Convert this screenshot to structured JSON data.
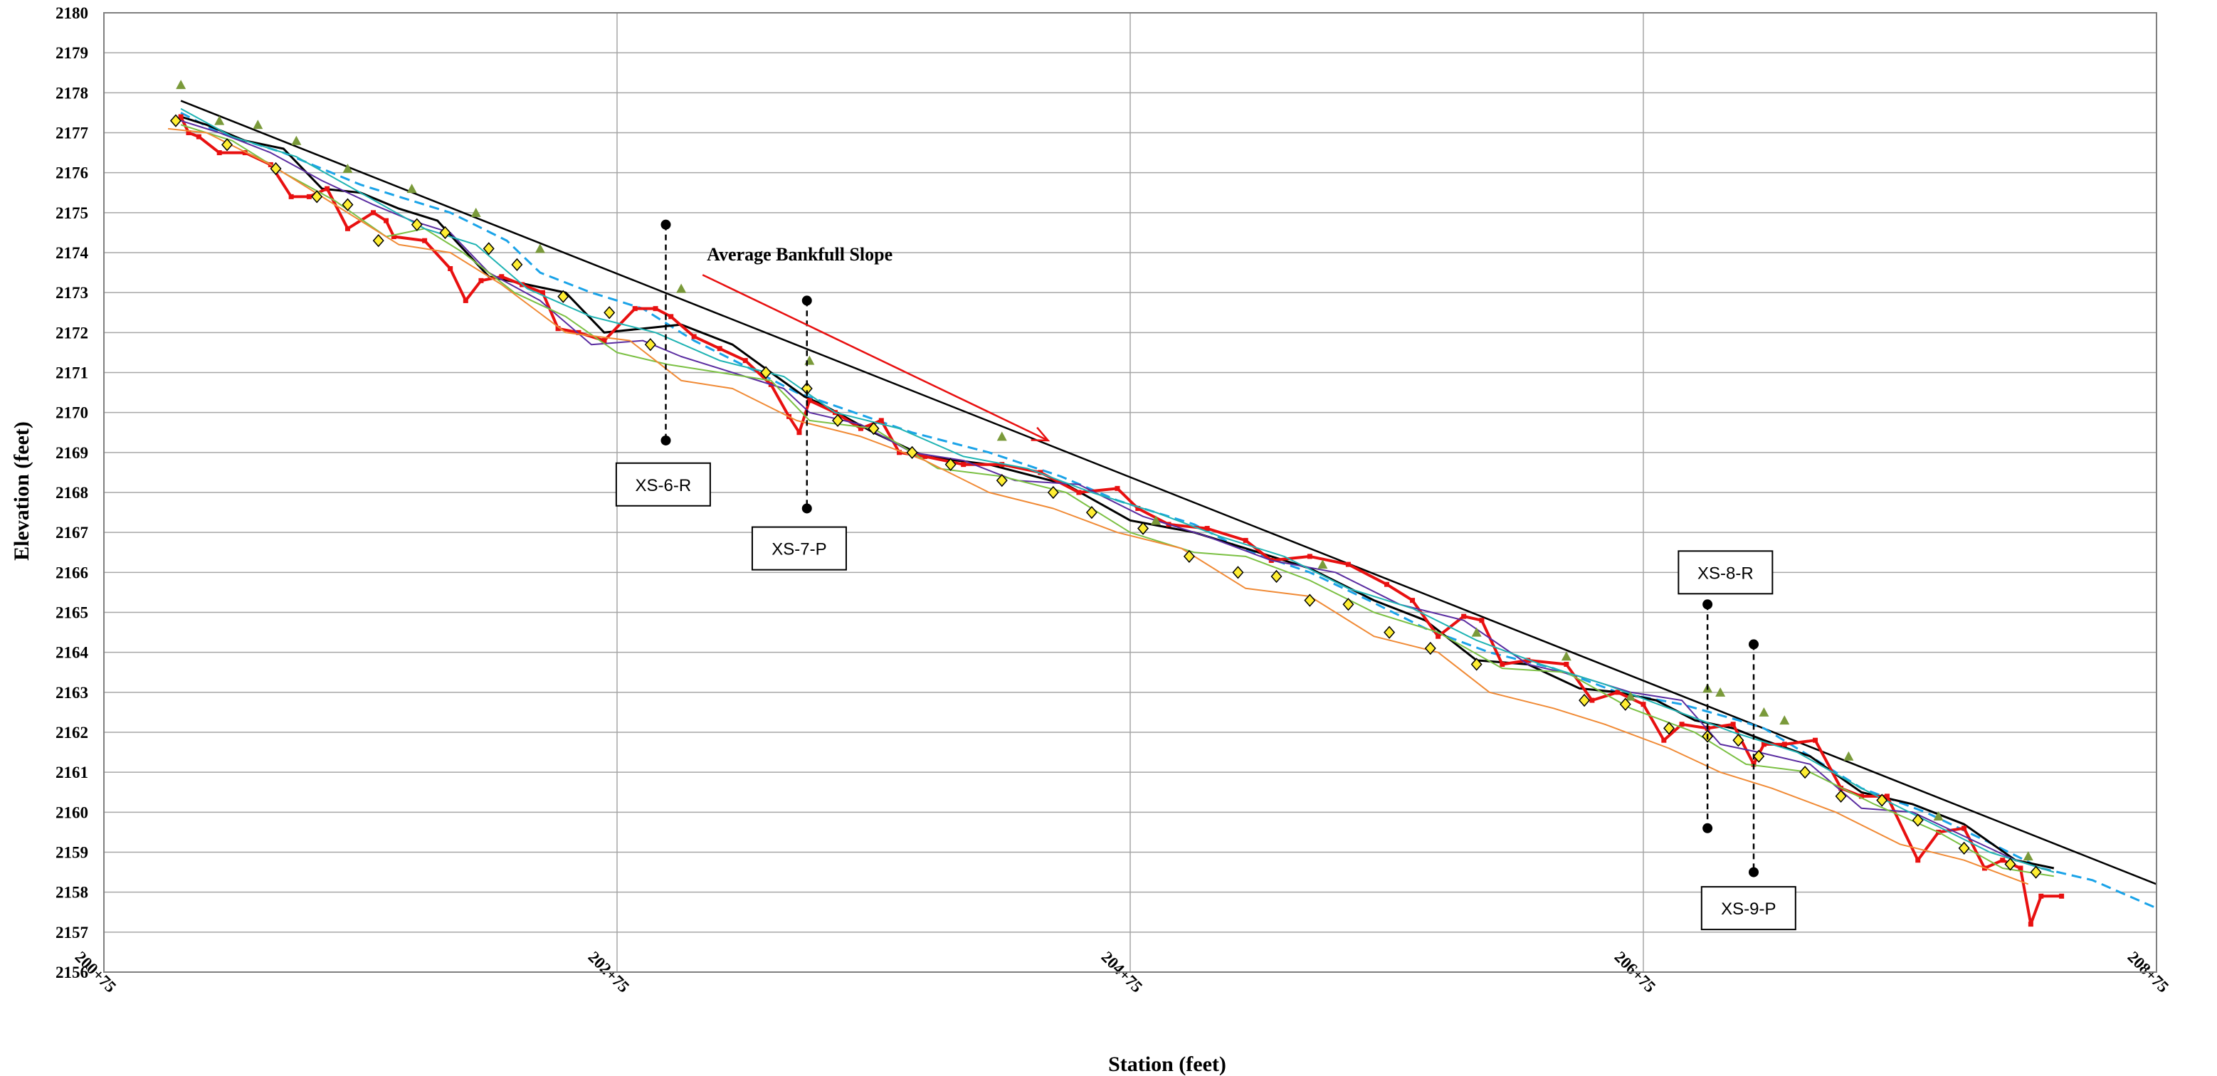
{
  "chart_data": {
    "type": "line",
    "xlabel": "Station (feet)",
    "ylabel": "Elevation (feet)",
    "x_ticks": [
      {
        "value": 20075,
        "label": "200+75"
      },
      {
        "value": 20275,
        "label": "202+75"
      },
      {
        "value": 20475,
        "label": "204+75"
      },
      {
        "value": 20675,
        "label": "206+75"
      },
      {
        "value": 20875,
        "label": "208+75"
      }
    ],
    "xlim": [
      20075,
      20875
    ],
    "ylim": [
      2156,
      2180
    ],
    "y_tick_step": 1,
    "grid": true,
    "annotation": {
      "text": "Average Bankfull Slope",
      "x": 20310,
      "y": 2173.8,
      "arrow_to": [
        20443,
        2169.3
      ]
    },
    "bankfull_slope_line": {
      "x": [
        20105,
        20875
      ],
      "y": [
        2177.8,
        2158.2
      ]
    },
    "cross_sections": [
      {
        "label": "XS-6-R",
        "x": 20294,
        "y_top": 2174.7,
        "y_bottom": 2169.3,
        "box_x": 20293,
        "box_y": 2168.2
      },
      {
        "label": "XS-7-P",
        "x": 20349,
        "y_top": 2172.8,
        "y_bottom": 2167.6,
        "box_x": 20346,
        "box_y": 2166.6
      },
      {
        "label": "XS-8-R",
        "x": 20700,
        "y_top": 2165.2,
        "y_bottom": 2159.6,
        "box_x": 20707,
        "box_y": 2166.0
      },
      {
        "label": "XS-9-P",
        "x": 20718,
        "y_top": 2164.2,
        "y_bottom": 2158.5,
        "box_x": 20716,
        "box_y": 2157.6
      }
    ],
    "series": [
      {
        "color": "#1aa3e8",
        "dashed": true,
        "width": 3,
        "x": [
          20105,
          20120,
          20145,
          20160,
          20175,
          20190,
          20210,
          20232,
          20245,
          20265,
          20285,
          20305,
          20330,
          20345,
          20372,
          20390,
          20420,
          20448,
          20470,
          20500,
          20518,
          20545,
          20568,
          20590,
          20615,
          20640,
          20665,
          20690,
          20712,
          20722,
          20740,
          20760,
          20785,
          20808,
          20830,
          20850,
          20875
        ],
        "y": [
          2177.5,
          2177.0,
          2176.5,
          2176.1,
          2175.7,
          2175.4,
          2175.0,
          2174.3,
          2173.5,
          2173.0,
          2172.6,
          2171.8,
          2171.0,
          2170.5,
          2169.9,
          2169.5,
          2169.0,
          2168.4,
          2167.8,
          2167.2,
          2166.6,
          2166.0,
          2165.3,
          2164.6,
          2164.0,
          2163.6,
          2163.0,
          2162.7,
          2162.3,
          2162.1,
          2161.4,
          2160.6,
          2160.0,
          2159.3,
          2158.6,
          2158.3,
          2157.6
        ]
      },
      {
        "color": "#000000",
        "dashed": false,
        "width": 3,
        "x": [
          20105,
          20115,
          20130,
          20145,
          20160,
          20175,
          20190,
          20205,
          20212,
          20225,
          20240,
          20255,
          20270,
          20285,
          20300,
          20320,
          20335,
          20348,
          20355,
          20375,
          20395,
          20420,
          20450,
          20475,
          20500,
          20520,
          20545,
          20570,
          20590,
          20610,
          20630,
          20650,
          20665,
          20680,
          20695,
          20710,
          20722,
          20740,
          20760,
          20780,
          20800,
          20820,
          20835
        ],
        "y": [
          2177.4,
          2177.2,
          2176.8,
          2176.6,
          2175.6,
          2175.5,
          2175.1,
          2174.8,
          2174.3,
          2173.4,
          2173.2,
          2173.0,
          2172.0,
          2172.1,
          2172.2,
          2171.7,
          2171.0,
          2170.4,
          2170.2,
          2169.5,
          2168.9,
          2168.7,
          2168.2,
          2167.3,
          2167.0,
          2166.6,
          2166.1,
          2165.3,
          2164.8,
          2163.8,
          2163.7,
          2163.1,
          2163.0,
          2162.8,
          2162.3,
          2162.1,
          2161.8,
          2161.4,
          2160.5,
          2160.2,
          2159.7,
          2158.8,
          2158.6
        ]
      },
      {
        "color": "#e81010",
        "dashed": false,
        "width": 4,
        "markers": true,
        "x": [
          20105,
          20108,
          20112,
          20120,
          20130,
          20140,
          20148,
          20155,
          20162,
          20170,
          20180,
          20185,
          20188,
          20200,
          20210,
          20216,
          20222,
          20230,
          20238,
          20246,
          20252,
          20260,
          20270,
          20282,
          20290,
          20296,
          20305,
          20315,
          20325,
          20335,
          20342,
          20346,
          20350,
          20360,
          20370,
          20378,
          20385,
          20395,
          20410,
          20425,
          20440,
          20455,
          20470,
          20478,
          20490,
          20505,
          20520,
          20530,
          20545,
          20560,
          20575,
          20585,
          20595,
          20605,
          20612,
          20620,
          20630,
          20645,
          20655,
          20665,
          20675,
          20683,
          20690,
          20700,
          20710,
          20718,
          20722,
          20730,
          20742,
          20752,
          20760,
          20770,
          20782,
          20790,
          20800,
          20808,
          20815,
          20822,
          20826,
          20830,
          20838
        ],
        "y": [
          2177.4,
          2177.0,
          2176.9,
          2176.5,
          2176.5,
          2176.2,
          2175.4,
          2175.4,
          2175.6,
          2174.6,
          2175.0,
          2174.8,
          2174.4,
          2174.3,
          2173.6,
          2172.8,
          2173.3,
          2173.4,
          2173.2,
          2173.0,
          2172.1,
          2172.0,
          2171.8,
          2172.6,
          2172.6,
          2172.4,
          2171.9,
          2171.6,
          2171.3,
          2170.7,
          2169.9,
          2169.5,
          2170.3,
          2170.0,
          2169.6,
          2169.8,
          2169.0,
          2168.9,
          2168.7,
          2168.7,
          2168.5,
          2168.0,
          2168.1,
          2167.6,
          2167.2,
          2167.1,
          2166.8,
          2166.3,
          2166.4,
          2166.2,
          2165.7,
          2165.3,
          2164.4,
          2164.9,
          2164.8,
          2163.7,
          2163.8,
          2163.7,
          2162.8,
          2163.0,
          2162.7,
          2161.8,
          2162.2,
          2162.1,
          2162.2,
          2161.2,
          2161.7,
          2161.7,
          2161.8,
          2160.6,
          2160.4,
          2160.4,
          2158.8,
          2159.5,
          2159.6,
          2158.6,
          2158.8,
          2158.6,
          2157.2,
          2157.9,
          2157.9
        ]
      },
      {
        "color": "#5a2ca0",
        "dashed": false,
        "width": 2,
        "x": [
          20105,
          20120,
          20140,
          20160,
          20180,
          20195,
          20210,
          20225,
          20245,
          20265,
          20285,
          20300,
          20320,
          20340,
          20350,
          20370,
          20390,
          20410,
          20430,
          20455,
          20480,
          20505,
          20530,
          20555,
          20580,
          20605,
          20630,
          20650,
          20670,
          20690,
          20705,
          20720,
          20740,
          20760,
          20780,
          20800,
          20820,
          20835
        ],
        "y": [
          2177.3,
          2177.0,
          2176.5,
          2175.8,
          2175.2,
          2174.8,
          2174.5,
          2173.5,
          2172.8,
          2171.7,
          2171.8,
          2171.4,
          2171.0,
          2170.6,
          2170.0,
          2169.7,
          2169.0,
          2168.8,
          2168.3,
          2168.2,
          2167.4,
          2166.9,
          2166.3,
          2166.0,
          2165.2,
          2164.8,
          2163.7,
          2163.4,
          2163.0,
          2162.8,
          2161.7,
          2161.5,
          2161.2,
          2160.1,
          2160.0,
          2159.4,
          2158.8,
          2158.5
        ]
      },
      {
        "color": "#7bc043",
        "dashed": false,
        "width": 2,
        "x": [
          20105,
          20125,
          20145,
          20165,
          20185,
          20200,
          20215,
          20235,
          20255,
          20275,
          20295,
          20315,
          20335,
          20350,
          20375,
          20400,
          20425,
          20450,
          20475,
          20500,
          20520,
          20545,
          20570,
          20595,
          20620,
          20645,
          20670,
          20695,
          20715,
          20740,
          20765,
          20790,
          20815,
          20835
        ],
        "y": [
          2177.2,
          2176.8,
          2176.0,
          2175.3,
          2174.4,
          2174.6,
          2174.0,
          2173.0,
          2172.4,
          2171.5,
          2171.2,
          2171.0,
          2170.8,
          2169.8,
          2169.6,
          2168.6,
          2168.4,
          2168.0,
          2167.0,
          2166.5,
          2166.4,
          2165.8,
          2165.0,
          2164.5,
          2163.6,
          2163.5,
          2162.6,
          2162.0,
          2161.2,
          2161.0,
          2160.2,
          2159.5,
          2158.6,
          2158.4
        ]
      },
      {
        "color": "#f08a35",
        "dashed": false,
        "width": 2,
        "x": [
          20100,
          20115,
          20140,
          20165,
          20190,
          20210,
          20230,
          20255,
          20280,
          20300,
          20320,
          20345,
          20370,
          20395,
          20420,
          20445,
          20470,
          20495,
          20520,
          20545,
          20570,
          20595,
          20615,
          20640,
          20660,
          20685,
          20705,
          20725,
          20750,
          20775,
          20800,
          20825
        ],
        "y": [
          2177.1,
          2177.0,
          2176.2,
          2175.2,
          2174.2,
          2174.0,
          2173.2,
          2172.0,
          2171.8,
          2170.8,
          2170.6,
          2169.8,
          2169.4,
          2168.8,
          2168.0,
          2167.6,
          2167.0,
          2166.6,
          2165.6,
          2165.4,
          2164.4,
          2164.0,
          2163.0,
          2162.6,
          2162.2,
          2161.6,
          2161.0,
          2160.6,
          2160.0,
          2159.2,
          2158.8,
          2158.2
        ]
      },
      {
        "color": "#1fb3b3",
        "dashed": false,
        "width": 2,
        "x": [
          20105,
          20125,
          20150,
          20175,
          20200,
          20220,
          20240,
          20265,
          20290,
          20315,
          20340,
          20360,
          20385,
          20410,
          20435,
          20460,
          20485,
          20510,
          20535,
          20560,
          20585,
          20610,
          20635,
          20660,
          20685,
          20710,
          20735,
          20760,
          20785,
          20810,
          20835
        ],
        "y": [
          2177.6,
          2176.9,
          2176.4,
          2175.5,
          2174.6,
          2174.2,
          2173.1,
          2172.4,
          2172.0,
          2171.3,
          2170.9,
          2170.0,
          2169.6,
          2168.9,
          2168.6,
          2168.0,
          2167.5,
          2166.9,
          2166.4,
          2165.6,
          2165.1,
          2164.3,
          2163.7,
          2163.2,
          2162.6,
          2162.0,
          2161.5,
          2160.6,
          2159.8,
          2159.0,
          2158.5
        ]
      }
    ],
    "diamond_points": {
      "color": "#ffee33",
      "x": [
        20103,
        20123,
        20142,
        20158,
        20170,
        20182,
        20197,
        20208,
        20225,
        20236,
        20254,
        20272,
        20288,
        20333,
        20349,
        20361,
        20375,
        20390,
        20405,
        20425,
        20445,
        20460,
        20480,
        20498,
        20517,
        20532,
        20545,
        20560,
        20576,
        20592,
        20610,
        20652,
        20668,
        20685,
        20700,
        20712,
        20720,
        20738,
        20752,
        20768,
        20782,
        20800,
        20818,
        20828
      ],
      "y": [
        2177.3,
        2176.7,
        2176.1,
        2175.4,
        2175.2,
        2174.3,
        2174.7,
        2174.5,
        2174.1,
        2173.7,
        2172.9,
        2172.5,
        2171.7,
        2171.0,
        2170.6,
        2169.8,
        2169.6,
        2169.0,
        2168.7,
        2168.3,
        2168.0,
        2167.5,
        2167.1,
        2166.4,
        2166.0,
        2165.9,
        2165.3,
        2165.2,
        2164.5,
        2164.1,
        2163.7,
        2162.8,
        2162.7,
        2162.1,
        2161.9,
        2161.8,
        2161.4,
        2161.0,
        2160.4,
        2160.3,
        2159.8,
        2159.1,
        2158.7,
        2158.5
      ]
    },
    "triangle_points": {
      "color": "#7a9a3a",
      "x": [
        20105,
        20120,
        20135,
        20150,
        20170,
        20195,
        20220,
        20245,
        20300,
        20350,
        20425,
        20485,
        20550,
        20610,
        20645,
        20670,
        20700,
        20705,
        20722,
        20730,
        20755,
        20790,
        20825
      ],
      "y": [
        2178.2,
        2177.3,
        2177.2,
        2176.8,
        2176.1,
        2175.6,
        2175.0,
        2174.1,
        2173.1,
        2171.3,
        2169.4,
        2167.3,
        2166.2,
        2164.5,
        2163.9,
        2162.9,
        2163.1,
        2163.0,
        2162.5,
        2162.3,
        2161.4,
        2159.9,
        2158.9
      ]
    }
  }
}
